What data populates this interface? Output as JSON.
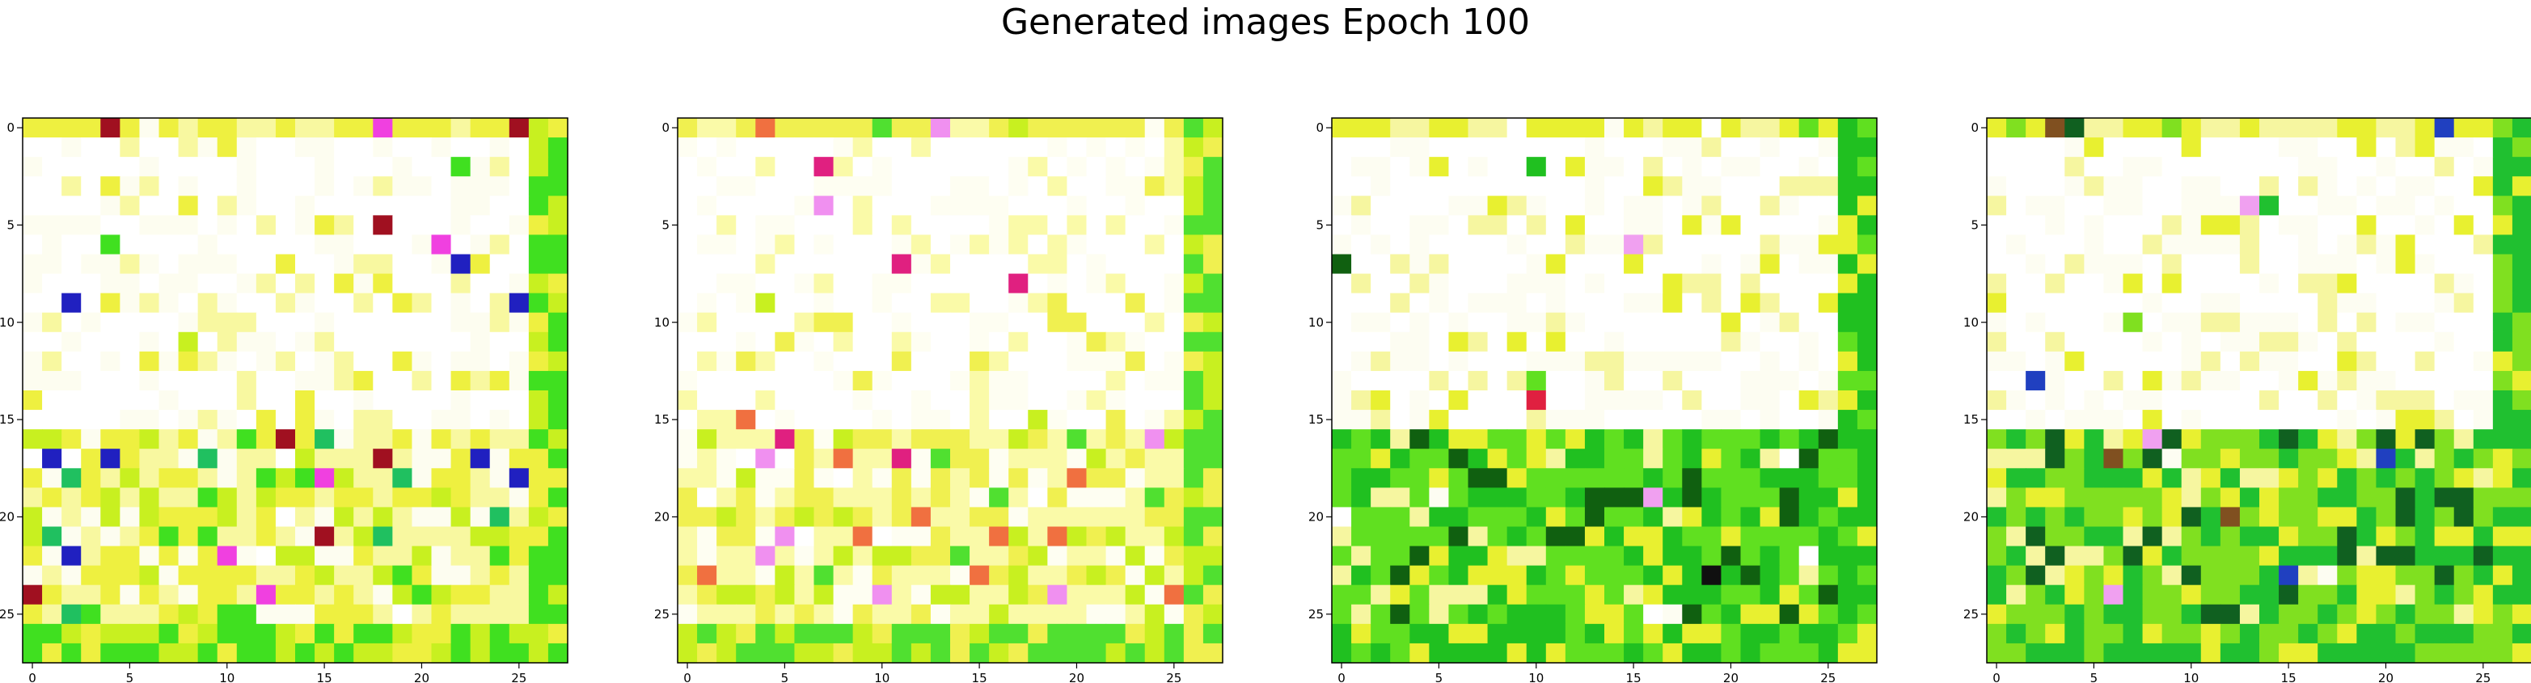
{
  "figure": {
    "suptitle": "Generated images Epoch 100"
  },
  "chart_data": [
    {
      "type": "heatmap",
      "rows": 28,
      "cols": 28,
      "xticks": [
        0,
        5,
        10,
        15,
        20,
        25
      ],
      "yticks": [
        0,
        5,
        10,
        15,
        20,
        25
      ],
      "xlim": [
        -0.5,
        27.5
      ],
      "ylim": [
        27.5,
        -0.5
      ],
      "grid": false,
      "description_of_values": "RGB generated image, dominant palette: white/pale yellow upper region, green and yellow lower region, magenta/pink accents",
      "palette": [
        "#ffffff",
        "#fdfdf0",
        "#f8f8a0",
        "#eef040",
        "#c8f020",
        "#40e020",
        "#20c060",
        "#f040e0",
        "#a01020",
        "#2020c0"
      ],
      "seed": 11
    },
    {
      "type": "heatmap",
      "rows": 28,
      "cols": 28,
      "xticks": [
        0,
        5,
        10,
        15,
        20,
        25
      ],
      "yticks": [
        0,
        5,
        10,
        15,
        20,
        25
      ],
      "xlim": [
        -0.5,
        27.5
      ],
      "ylim": [
        27.5,
        -0.5
      ],
      "grid": false,
      "description_of_values": "RGB generated image, mostly white/pale yellow with pink/magenta blobs; green border right, yellow-green bottom rows",
      "palette": [
        "#ffffff",
        "#fefef2",
        "#fafaa8",
        "#f0f050",
        "#c8f020",
        "#50e030",
        "#f090f0",
        "#e02080",
        "#f07040"
      ],
      "seed": 27
    },
    {
      "type": "heatmap",
      "rows": 28,
      "cols": 28,
      "xticks": [
        0,
        5,
        10,
        15,
        20,
        25
      ],
      "yticks": [
        0,
        5,
        10,
        15,
        20,
        25
      ],
      "xlim": [
        -0.5,
        27.5
      ],
      "ylim": [
        27.5,
        -0.5
      ],
      "grid": false,
      "description_of_values": "RGB generated image, white/pale upper half; lower half dense green with dark/black and red pixels",
      "palette": [
        "#ffffff",
        "#fdfdf2",
        "#f6f6a0",
        "#e8f030",
        "#60e020",
        "#20c020",
        "#106010",
        "#101010",
        "#e02040",
        "#f0a0f0"
      ],
      "seed": 53
    },
    {
      "type": "heatmap",
      "rows": 28,
      "cols": 28,
      "xticks": [
        0,
        5,
        10,
        15,
        20,
        25
      ],
      "yticks": [
        0,
        5,
        10,
        15,
        20,
        25
      ],
      "xlim": [
        -0.5,
        27.5
      ],
      "ylim": [
        27.5,
        -0.5
      ],
      "grid": false,
      "description_of_values": "RGB generated image, white/pale yellow upper half; lower half green/yellow with dark green and brown pixels",
      "palette": [
        "#ffffff",
        "#fdfdf2",
        "#f6f6a0",
        "#e8f030",
        "#80e020",
        "#20c030",
        "#106020",
        "#805020",
        "#f0a0f0",
        "#2040c0"
      ],
      "seed": 71
    }
  ]
}
